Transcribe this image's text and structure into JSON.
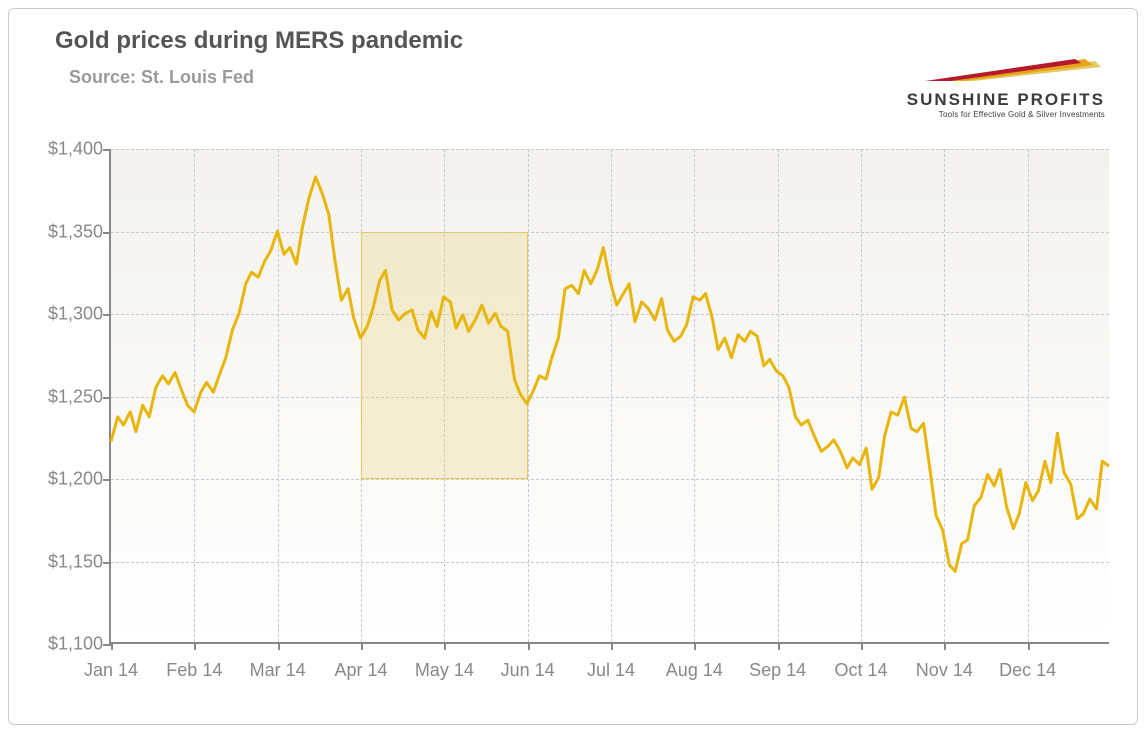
{
  "title": "Gold prices during MERS pandemic",
  "source": "Source: St. Louis Fed",
  "logo": {
    "name": "SUNSHINE PROFITS",
    "tagline": "Tools for Effective Gold & Silver Investments",
    "colors": [
      "#b5192c",
      "#e8a215",
      "#e2c964"
    ]
  },
  "chart": {
    "type": "line",
    "series_color": "#e8b50a",
    "line_width": 3,
    "background_gradient": [
      "#f3f2ee",
      "#ffffff"
    ],
    "grid_color": "#c8c8c8",
    "axis_color": "#888888",
    "label_color": "#888888",
    "label_fontsize": 18,
    "ylim": [
      1100,
      1400
    ],
    "ytick_step": 50,
    "yticks": [
      1100,
      1150,
      1200,
      1250,
      1300,
      1350,
      1400
    ],
    "ylabels": [
      "$1,100",
      "$1,150",
      "$1,200",
      "$1,250",
      "$1,300",
      "$1,350",
      "$1,400"
    ],
    "xlim": [
      0,
      12
    ],
    "xticks": [
      0,
      1,
      2,
      3,
      4,
      5,
      6,
      7,
      8,
      9,
      10,
      11
    ],
    "xlabels": [
      "Jan 14",
      "Feb 14",
      "Mar 14",
      "Apr 14",
      "May 14",
      "Jun 14",
      "Jul 14",
      "Aug 14",
      "Sep 14",
      "Oct 14",
      "Nov 14",
      "Dec 14"
    ],
    "highlight_region": {
      "x_start": 3,
      "x_end": 5,
      "y_start": 1200,
      "y_end": 1350,
      "fill": "rgba(232,210,120,0.30)",
      "border": "#e2c964"
    },
    "data": [
      [
        0.0,
        1222
      ],
      [
        0.08,
        1237
      ],
      [
        0.15,
        1232
      ],
      [
        0.23,
        1240
      ],
      [
        0.3,
        1228
      ],
      [
        0.38,
        1244
      ],
      [
        0.46,
        1237
      ],
      [
        0.54,
        1255
      ],
      [
        0.62,
        1262
      ],
      [
        0.69,
        1257
      ],
      [
        0.77,
        1264
      ],
      [
        0.85,
        1253
      ],
      [
        0.92,
        1244
      ],
      [
        1.0,
        1240
      ],
      [
        1.08,
        1252
      ],
      [
        1.15,
        1258
      ],
      [
        1.23,
        1252
      ],
      [
        1.3,
        1262
      ],
      [
        1.38,
        1273
      ],
      [
        1.46,
        1290
      ],
      [
        1.54,
        1300
      ],
      [
        1.62,
        1318
      ],
      [
        1.69,
        1325
      ],
      [
        1.77,
        1322
      ],
      [
        1.85,
        1332
      ],
      [
        1.92,
        1338
      ],
      [
        2.0,
        1350
      ],
      [
        2.08,
        1336
      ],
      [
        2.15,
        1340
      ],
      [
        2.23,
        1330
      ],
      [
        2.3,
        1352
      ],
      [
        2.38,
        1370
      ],
      [
        2.46,
        1383
      ],
      [
        2.54,
        1373
      ],
      [
        2.62,
        1360
      ],
      [
        2.69,
        1333
      ],
      [
        2.77,
        1308
      ],
      [
        2.85,
        1315
      ],
      [
        2.92,
        1297
      ],
      [
        3.0,
        1285
      ],
      [
        3.08,
        1292
      ],
      [
        3.15,
        1303
      ],
      [
        3.23,
        1320
      ],
      [
        3.3,
        1326
      ],
      [
        3.38,
        1302
      ],
      [
        3.46,
        1296
      ],
      [
        3.54,
        1300
      ],
      [
        3.62,
        1302
      ],
      [
        3.69,
        1290
      ],
      [
        3.77,
        1285
      ],
      [
        3.85,
        1301
      ],
      [
        3.92,
        1292
      ],
      [
        4.0,
        1310
      ],
      [
        4.08,
        1307
      ],
      [
        4.15,
        1291
      ],
      [
        4.23,
        1299
      ],
      [
        4.3,
        1289
      ],
      [
        4.38,
        1296
      ],
      [
        4.46,
        1305
      ],
      [
        4.54,
        1294
      ],
      [
        4.62,
        1300
      ],
      [
        4.69,
        1292
      ],
      [
        4.77,
        1289
      ],
      [
        4.85,
        1260
      ],
      [
        4.92,
        1251
      ],
      [
        5.0,
        1245
      ],
      [
        5.08,
        1253
      ],
      [
        5.15,
        1262
      ],
      [
        5.23,
        1260
      ],
      [
        5.3,
        1273
      ],
      [
        5.38,
        1285
      ],
      [
        5.46,
        1315
      ],
      [
        5.54,
        1317
      ],
      [
        5.62,
        1312
      ],
      [
        5.69,
        1326
      ],
      [
        5.77,
        1318
      ],
      [
        5.85,
        1327
      ],
      [
        5.92,
        1340
      ],
      [
        6.0,
        1320
      ],
      [
        6.08,
        1305
      ],
      [
        6.15,
        1311
      ],
      [
        6.23,
        1318
      ],
      [
        6.3,
        1295
      ],
      [
        6.38,
        1307
      ],
      [
        6.46,
        1303
      ],
      [
        6.54,
        1296
      ],
      [
        6.62,
        1309
      ],
      [
        6.69,
        1290
      ],
      [
        6.77,
        1283
      ],
      [
        6.85,
        1286
      ],
      [
        6.92,
        1293
      ],
      [
        7.0,
        1310
      ],
      [
        7.08,
        1308
      ],
      [
        7.15,
        1312
      ],
      [
        7.23,
        1297
      ],
      [
        7.3,
        1278
      ],
      [
        7.38,
        1285
      ],
      [
        7.46,
        1273
      ],
      [
        7.54,
        1287
      ],
      [
        7.62,
        1283
      ],
      [
        7.69,
        1289
      ],
      [
        7.77,
        1286
      ],
      [
        7.85,
        1268
      ],
      [
        7.92,
        1272
      ],
      [
        8.0,
        1265
      ],
      [
        8.08,
        1262
      ],
      [
        8.15,
        1255
      ],
      [
        8.23,
        1237
      ],
      [
        8.3,
        1232
      ],
      [
        8.38,
        1235
      ],
      [
        8.46,
        1225
      ],
      [
        8.54,
        1216
      ],
      [
        8.62,
        1219
      ],
      [
        8.69,
        1223
      ],
      [
        8.77,
        1216
      ],
      [
        8.85,
        1206
      ],
      [
        8.92,
        1212
      ],
      [
        9.0,
        1208
      ],
      [
        9.08,
        1218
      ],
      [
        9.15,
        1193
      ],
      [
        9.23,
        1200
      ],
      [
        9.3,
        1225
      ],
      [
        9.38,
        1240
      ],
      [
        9.46,
        1238
      ],
      [
        9.54,
        1249
      ],
      [
        9.62,
        1230
      ],
      [
        9.69,
        1228
      ],
      [
        9.77,
        1233
      ],
      [
        9.85,
        1204
      ],
      [
        9.92,
        1177
      ],
      [
        10.0,
        1168
      ],
      [
        10.08,
        1147
      ],
      [
        10.15,
        1143
      ],
      [
        10.23,
        1160
      ],
      [
        10.3,
        1162
      ],
      [
        10.38,
        1183
      ],
      [
        10.46,
        1188
      ],
      [
        10.54,
        1202
      ],
      [
        10.62,
        1195
      ],
      [
        10.69,
        1205
      ],
      [
        10.77,
        1182
      ],
      [
        10.85,
        1169
      ],
      [
        10.92,
        1178
      ],
      [
        11.0,
        1197
      ],
      [
        11.08,
        1186
      ],
      [
        11.15,
        1192
      ],
      [
        11.23,
        1210
      ],
      [
        11.3,
        1197
      ],
      [
        11.38,
        1227
      ],
      [
        11.46,
        1203
      ],
      [
        11.54,
        1196
      ],
      [
        11.62,
        1175
      ],
      [
        11.69,
        1178
      ],
      [
        11.77,
        1187
      ],
      [
        11.85,
        1181
      ],
      [
        11.92,
        1210
      ],
      [
        12.0,
        1207
      ]
    ]
  }
}
